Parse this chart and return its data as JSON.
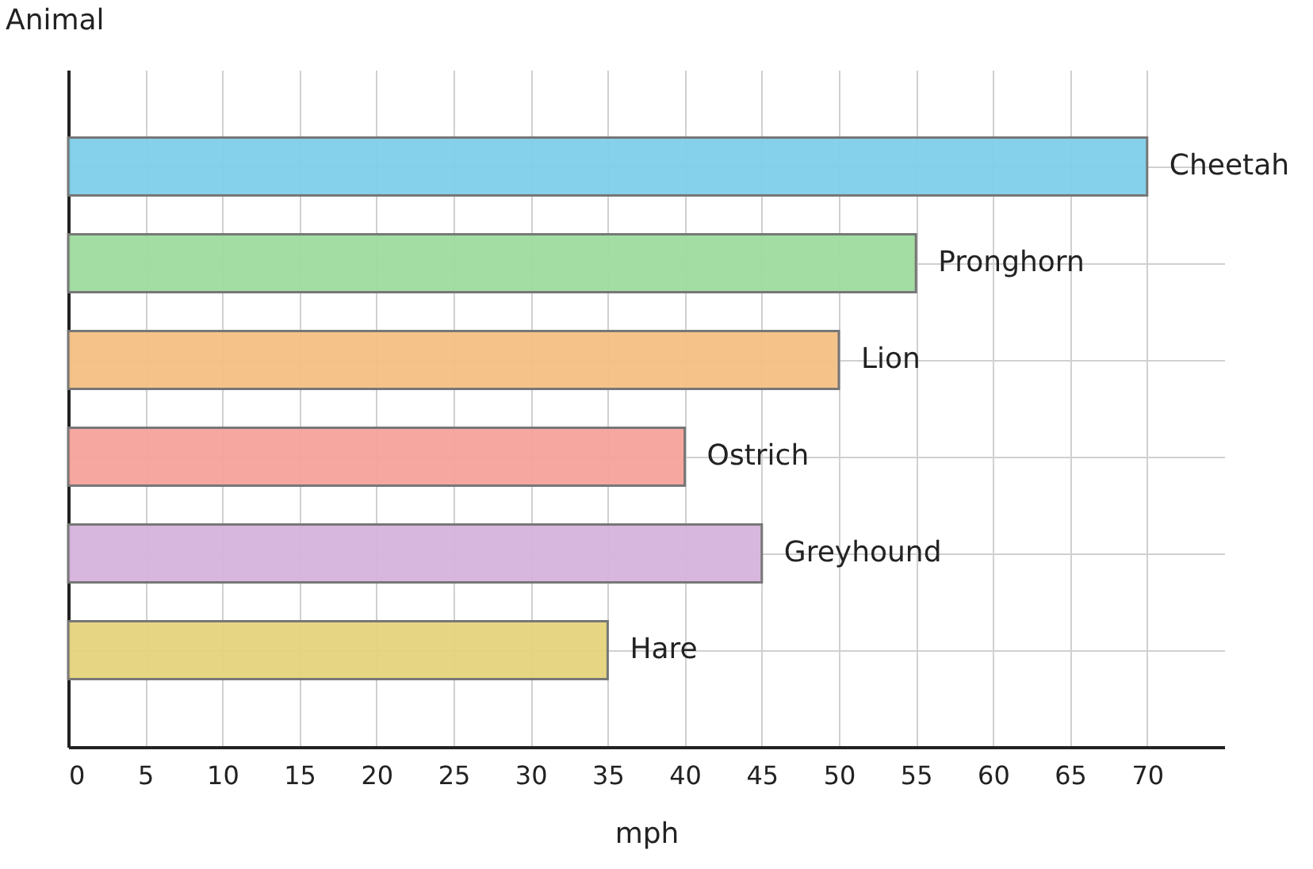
{
  "chart_data": {
    "type": "bar",
    "orientation": "horizontal",
    "xlabel": "mph",
    "ylabel": "Animal",
    "categories": [
      "Cheetah",
      "Pronghorn",
      "Lion",
      "Ostrich",
      "Greyhound",
      "Hare"
    ],
    "values": [
      70,
      55,
      50,
      40,
      45,
      35
    ],
    "colors": [
      "#7ecde9",
      "#9edb9e",
      "#f4c084",
      "#f4a29b",
      "#d6b3dc",
      "#e5d47c"
    ],
    "xlim": [
      0,
      75
    ],
    "xticks": [
      0,
      5,
      10,
      15,
      20,
      25,
      30,
      35,
      40,
      45,
      50,
      55,
      60,
      65,
      70
    ],
    "grid": true,
    "tick_labels": "x"
  }
}
